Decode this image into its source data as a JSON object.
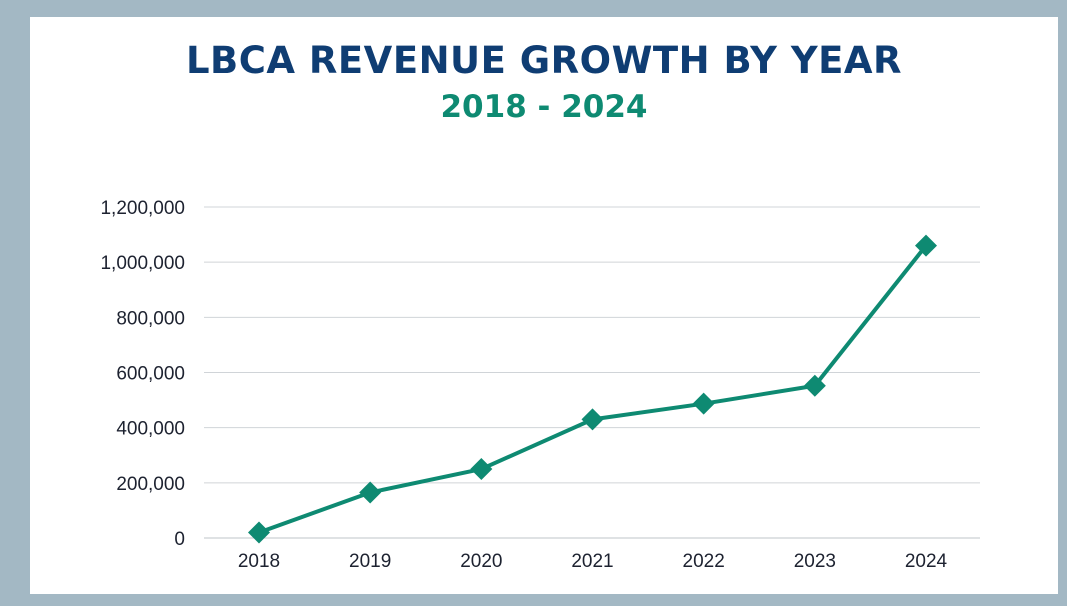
{
  "chart_data": {
    "type": "line",
    "title": "LBCA REVENUE GROWTH BY YEAR",
    "subtitle": "2018 - 2024",
    "categories": [
      "2018",
      "2019",
      "2020",
      "2021",
      "2022",
      "2023",
      "2024"
    ],
    "series": [
      {
        "values": [
          20000,
          165000,
          250000,
          430000,
          487000,
          552000,
          1060000
        ],
        "color": "#0e8a72",
        "marker": "diamond"
      }
    ],
    "y_ticks": [
      0,
      200000,
      400000,
      600000,
      800000,
      1000000,
      1200000
    ],
    "y_tick_labels": [
      "0",
      "200,000",
      "400,000",
      "600,000",
      "800,000",
      "1,000,000",
      "1,200,000"
    ],
    "ylim": [
      0,
      1200000
    ],
    "grid": true,
    "legend": "none"
  },
  "colors": {
    "title": "#0f3d73",
    "subtitle": "#0e8a72",
    "line": "#0e8a72",
    "grid": "#d0d4d8",
    "frame": "#a3b8c4"
  }
}
